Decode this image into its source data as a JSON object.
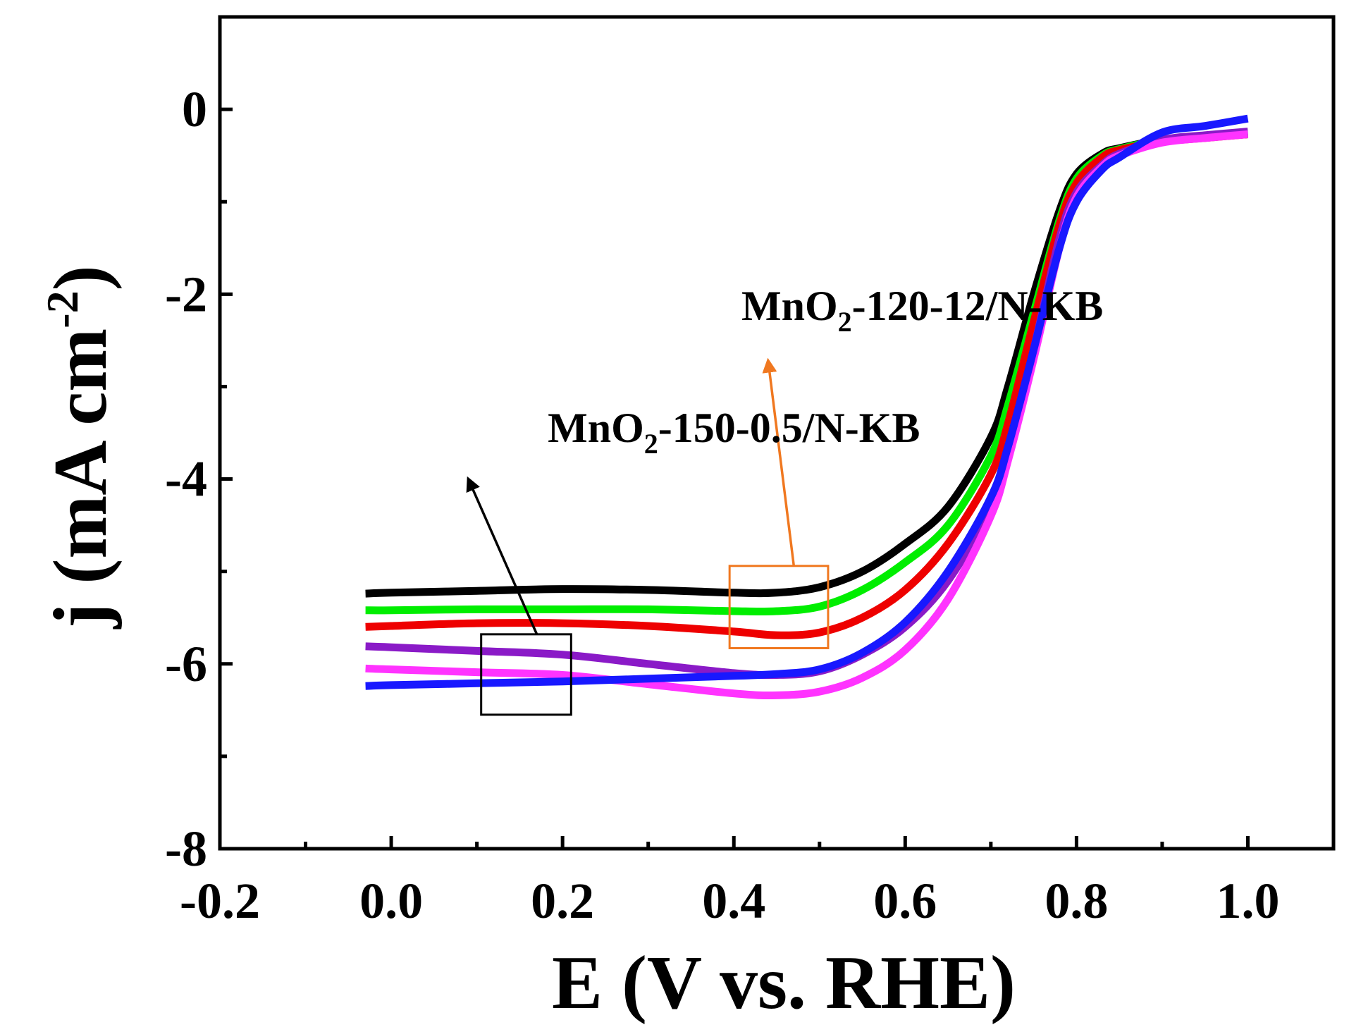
{
  "chart_data": {
    "type": "line",
    "title": "",
    "xlabel": "E (V vs. RHE)",
    "ylabel": {
      "main": "j (mA cm",
      "sup": "-2",
      "close": ")"
    },
    "xlim": [
      -0.2,
      1.1
    ],
    "ylim": [
      -8,
      1
    ],
    "x_ticks": [
      -0.2,
      0.0,
      0.2,
      0.4,
      0.6,
      0.8,
      1.0
    ],
    "x_tick_labels": [
      "-0.2",
      "0.0",
      "0.2",
      "0.4",
      "0.6",
      "0.8",
      "1.0"
    ],
    "y_ticks": [
      -8,
      -6,
      -4,
      -2,
      0
    ],
    "y_tick_labels": [
      "-8",
      "-6",
      "-4",
      "-2",
      "0"
    ],
    "grid": false,
    "legend": "none",
    "series": [
      {
        "name": "black",
        "color": "#000000",
        "x": [
          -0.03,
          0.0,
          0.1,
          0.2,
          0.3,
          0.4,
          0.45,
          0.5,
          0.55,
          0.6,
          0.65,
          0.7,
          0.72,
          0.75,
          0.78,
          0.8,
          0.83,
          0.85,
          0.9,
          0.95,
          1.0
        ],
        "y": [
          -5.24,
          -5.23,
          -5.21,
          -5.19,
          -5.2,
          -5.23,
          -5.23,
          -5.17,
          -5.0,
          -4.7,
          -4.3,
          -3.55,
          -3.0,
          -2.0,
          -1.1,
          -0.7,
          -0.48,
          -0.42,
          -0.33,
          -0.3,
          -0.27
        ]
      },
      {
        "name": "green",
        "color": "#00ee00",
        "x": [
          -0.03,
          0.0,
          0.1,
          0.2,
          0.3,
          0.4,
          0.45,
          0.5,
          0.55,
          0.6,
          0.65,
          0.7,
          0.72,
          0.75,
          0.78,
          0.8,
          0.83,
          0.85,
          0.9,
          0.95,
          1.0
        ],
        "y": [
          -5.42,
          -5.42,
          -5.41,
          -5.41,
          -5.41,
          -5.43,
          -5.43,
          -5.38,
          -5.2,
          -4.9,
          -4.5,
          -3.75,
          -3.2,
          -2.2,
          -1.2,
          -0.75,
          -0.5,
          -0.43,
          -0.33,
          -0.29,
          -0.26
        ]
      },
      {
        "name": "red",
        "color": "#ee0000",
        "x": [
          -0.03,
          0.0,
          0.1,
          0.2,
          0.3,
          0.4,
          0.45,
          0.5,
          0.55,
          0.6,
          0.65,
          0.7,
          0.72,
          0.75,
          0.78,
          0.8,
          0.83,
          0.85,
          0.9,
          0.95,
          1.0
        ],
        "y": [
          -5.6,
          -5.59,
          -5.56,
          -5.56,
          -5.59,
          -5.65,
          -5.69,
          -5.66,
          -5.5,
          -5.2,
          -4.7,
          -3.95,
          -3.4,
          -2.3,
          -1.25,
          -0.8,
          -0.52,
          -0.44,
          -0.35,
          -0.31,
          -0.27
        ]
      },
      {
        "name": "purple",
        "color": "#8a1ac7",
        "x": [
          -0.03,
          0.0,
          0.1,
          0.2,
          0.3,
          0.4,
          0.45,
          0.5,
          0.55,
          0.6,
          0.65,
          0.7,
          0.72,
          0.75,
          0.78,
          0.8,
          0.83,
          0.85,
          0.9,
          0.95,
          1.0
        ],
        "y": [
          -5.81,
          -5.82,
          -5.86,
          -5.9,
          -6.0,
          -6.1,
          -6.12,
          -6.08,
          -5.9,
          -5.6,
          -5.1,
          -4.3,
          -3.7,
          -2.6,
          -1.4,
          -0.9,
          -0.6,
          -0.48,
          -0.33,
          -0.28,
          -0.24
        ]
      },
      {
        "name": "magenta",
        "color": "#ff33ff",
        "x": [
          -0.03,
          0.0,
          0.1,
          0.2,
          0.3,
          0.4,
          0.45,
          0.5,
          0.55,
          0.6,
          0.65,
          0.7,
          0.72,
          0.75,
          0.78,
          0.8,
          0.83,
          0.85,
          0.9,
          0.95,
          1.0
        ],
        "y": [
          -6.05,
          -6.06,
          -6.09,
          -6.12,
          -6.22,
          -6.32,
          -6.34,
          -6.3,
          -6.15,
          -5.85,
          -5.3,
          -4.4,
          -3.8,
          -2.7,
          -1.5,
          -0.95,
          -0.62,
          -0.5,
          -0.36,
          -0.31,
          -0.27
        ]
      },
      {
        "name": "blue",
        "color": "#1818ff",
        "x": [
          -0.03,
          0.0,
          0.1,
          0.2,
          0.3,
          0.4,
          0.45,
          0.5,
          0.55,
          0.6,
          0.65,
          0.7,
          0.72,
          0.75,
          0.78,
          0.8,
          0.83,
          0.85,
          0.9,
          0.95,
          1.0
        ],
        "y": [
          -6.24,
          -6.23,
          -6.21,
          -6.19,
          -6.16,
          -6.13,
          -6.11,
          -6.06,
          -5.88,
          -5.55,
          -5.0,
          -4.2,
          -3.65,
          -2.6,
          -1.5,
          -1.0,
          -0.65,
          -0.52,
          -0.25,
          -0.18,
          -0.1
        ]
      }
    ],
    "annotations": [
      {
        "text_main": "MnO",
        "text_sub": "2",
        "text_rest": "-120-12/N-KB",
        "color": "#f07820",
        "box_x": [
          0.395,
          0.51
        ],
        "box_y": [
          -5.83,
          -4.94
        ],
        "arrow_from": [
          0.47,
          -4.94
        ],
        "arrow_to": [
          0.44,
          -2.72
        ],
        "label_anchor": [
          0.62,
          -2.28
        ]
      },
      {
        "text_main": "MnO",
        "text_sub": "2",
        "text_rest": "-150-0.5/N-KB",
        "color": "#000000",
        "box_x": [
          0.105,
          0.21
        ],
        "box_y": [
          -6.55,
          -5.68
        ],
        "arrow_from": [
          0.17,
          -5.68
        ],
        "arrow_to": [
          0.09,
          -4.0
        ],
        "label_anchor": [
          0.4,
          -3.6
        ]
      }
    ]
  }
}
